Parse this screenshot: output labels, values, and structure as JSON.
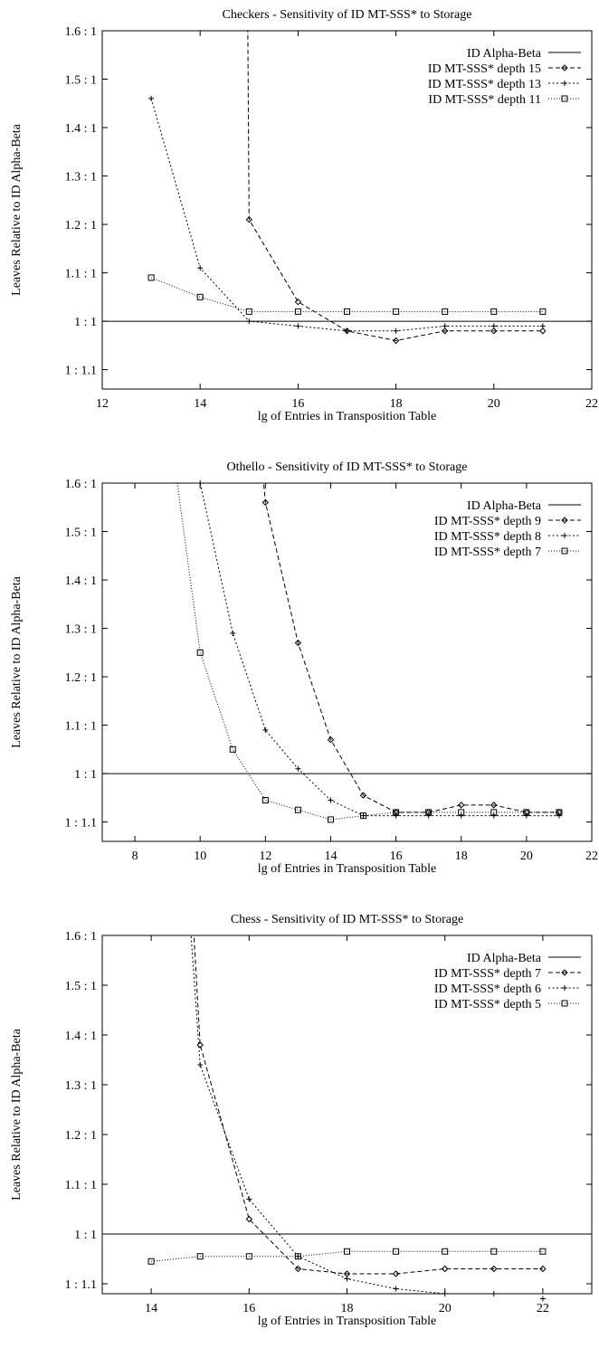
{
  "chart_data": [
    {
      "type": "line",
      "title": "Checkers - Sensitivity of ID MT-SSS* to Storage",
      "xlabel": "lg of Entries in Transposition Table",
      "ylabel": "Leaves Relative to ID Alpha-Beta",
      "xlim": [
        12,
        22
      ],
      "ylim": [
        0.86,
        1.6
      ],
      "x_ticks": [
        12,
        14,
        16,
        18,
        20,
        22
      ],
      "y_ticks": [
        {
          "value": 1.6,
          "label": "1.6 : 1"
        },
        {
          "value": 1.5,
          "label": "1.5 : 1"
        },
        {
          "value": 1.4,
          "label": "1.4 : 1"
        },
        {
          "value": 1.3,
          "label": "1.3 : 1"
        },
        {
          "value": 1.2,
          "label": "1.2 : 1"
        },
        {
          "value": 1.1,
          "label": "1.1 : 1"
        },
        {
          "value": 1.0,
          "label": "1 : 1"
        },
        {
          "value": 0.9,
          "label": "1 : 1.1"
        }
      ],
      "legend_position": "top-right",
      "reference": {
        "name": "ID Alpha-Beta",
        "y": 1.0
      },
      "series": [
        {
          "name": "ID MT-SSS* depth 15",
          "marker": "diamond",
          "dash": "dashed",
          "x": [
            15,
            16,
            17,
            18,
            19,
            20,
            21
          ],
          "values": [
            1.21,
            1.04,
            0.98,
            0.96,
            0.98,
            0.98,
            0.98
          ],
          "offscale": {
            "x": 14.95,
            "y": 1.95
          }
        },
        {
          "name": "ID MT-SSS* depth 13",
          "marker": "plus",
          "dash": "dotted",
          "x": [
            13,
            14,
            15,
            16,
            17,
            18,
            19,
            20,
            21
          ],
          "values": [
            1.46,
            1.11,
            1.0,
            0.99,
            0.98,
            0.98,
            0.99,
            0.99,
            0.99
          ]
        },
        {
          "name": "ID MT-SSS* depth 11",
          "marker": "square",
          "dash": "fine-dotted",
          "x": [
            13,
            14,
            15,
            16,
            17,
            18,
            19,
            20,
            21
          ],
          "values": [
            1.09,
            1.05,
            1.02,
            1.02,
            1.02,
            1.02,
            1.02,
            1.02,
            1.02
          ]
        }
      ]
    },
    {
      "type": "line",
      "title": "Othello - Sensitivity of ID MT-SSS* to Storage",
      "xlabel": "lg of Entries in Transposition Table",
      "ylabel": "Leaves Relative to ID Alpha-Beta",
      "xlim": [
        7,
        22
      ],
      "ylim": [
        0.86,
        1.6
      ],
      "x_ticks": [
        8,
        10,
        12,
        14,
        16,
        18,
        20,
        22
      ],
      "y_ticks": [
        {
          "value": 1.6,
          "label": "1.6 : 1"
        },
        {
          "value": 1.5,
          "label": "1.5 : 1"
        },
        {
          "value": 1.4,
          "label": "1.4 : 1"
        },
        {
          "value": 1.3,
          "label": "1.3 : 1"
        },
        {
          "value": 1.2,
          "label": "1.2 : 1"
        },
        {
          "value": 1.1,
          "label": "1.1 : 1"
        },
        {
          "value": 1.0,
          "label": "1 : 1"
        },
        {
          "value": 0.9,
          "label": "1 : 1.1"
        }
      ],
      "legend_position": "top-right",
      "reference": {
        "name": "ID Alpha-Beta",
        "y": 1.0
      },
      "series": [
        {
          "name": "ID MT-SSS* depth 9",
          "marker": "diamond",
          "dash": "dashed",
          "x": [
            12,
            13,
            14,
            15,
            16,
            17,
            18,
            19,
            20,
            21
          ],
          "values": [
            1.56,
            1.27,
            1.07,
            0.955,
            0.92,
            0.92,
            0.935,
            0.935,
            0.92,
            0.92
          ],
          "offscale": {
            "x": 11.6,
            "y": 1.85
          }
        },
        {
          "name": "ID MT-SSS* depth 8",
          "marker": "plus",
          "dash": "dotted",
          "x": [
            10,
            11,
            12,
            13,
            14,
            15,
            16,
            17,
            18,
            19,
            20,
            21
          ],
          "values": [
            1.6,
            1.29,
            1.09,
            1.01,
            0.945,
            0.913,
            0.913,
            0.913,
            0.913,
            0.913,
            0.913,
            0.913
          ],
          "offscale": {
            "x": 9.8,
            "y": 1.75
          }
        },
        {
          "name": "ID MT-SSS* depth 7",
          "marker": "square",
          "dash": "fine-dotted",
          "x": [
            10,
            11,
            12,
            13,
            14,
            15,
            16,
            17,
            18,
            19,
            20,
            21
          ],
          "values": [
            1.25,
            1.05,
            0.945,
            0.925,
            0.905,
            0.913,
            0.92,
            0.92,
            0.92,
            0.92,
            0.92,
            0.92
          ],
          "offscale": {
            "x": 9.0,
            "y": 1.75
          }
        }
      ]
    },
    {
      "type": "line",
      "title": "Chess - Sensitivity of ID MT-SSS* to Storage",
      "xlabel": "lg of Entries in Transposition Table",
      "ylabel": "Leaves Relative to ID Alpha-Beta",
      "xlim": [
        13,
        23
      ],
      "ylim": [
        0.88,
        1.6
      ],
      "x_ticks": [
        14,
        16,
        18,
        20,
        22
      ],
      "y_ticks": [
        {
          "value": 1.6,
          "label": "1.6 : 1"
        },
        {
          "value": 1.5,
          "label": "1.5 : 1"
        },
        {
          "value": 1.4,
          "label": "1.4 : 1"
        },
        {
          "value": 1.3,
          "label": "1.3 : 1"
        },
        {
          "value": 1.2,
          "label": "1.2 : 1"
        },
        {
          "value": 1.1,
          "label": "1.1 : 1"
        },
        {
          "value": 1.0,
          "label": "1 : 1"
        },
        {
          "value": 0.9,
          "label": "1 : 1.1"
        }
      ],
      "legend_position": "top-right",
      "reference": {
        "name": "ID Alpha-Beta",
        "y": 1.0
      },
      "series": [
        {
          "name": "ID MT-SSS* depth 7",
          "marker": "diamond",
          "dash": "dashed",
          "x": [
            15,
            16,
            17,
            18,
            19,
            20,
            21,
            22
          ],
          "values": [
            1.38,
            1.03,
            0.93,
            0.92,
            0.92,
            0.93,
            0.93,
            0.93
          ],
          "offscale": {
            "x": 14.7,
            "y": 1.9
          }
        },
        {
          "name": "ID MT-SSS* depth 6",
          "marker": "plus",
          "dash": "dotted",
          "x": [
            15,
            16,
            17,
            18,
            19,
            20,
            21,
            22
          ],
          "values": [
            1.34,
            1.07,
            0.955,
            0.91,
            0.89,
            0.88,
            0.88,
            0.87
          ],
          "offscale": {
            "x": 14.6,
            "y": 1.9
          }
        },
        {
          "name": "ID MT-SSS* depth 5",
          "marker": "square",
          "dash": "fine-dotted",
          "x": [
            14,
            15,
            16,
            17,
            18,
            19,
            20,
            21,
            22
          ],
          "values": [
            0.945,
            0.955,
            0.955,
            0.955,
            0.965,
            0.965,
            0.965,
            0.965,
            0.965
          ]
        }
      ]
    }
  ]
}
